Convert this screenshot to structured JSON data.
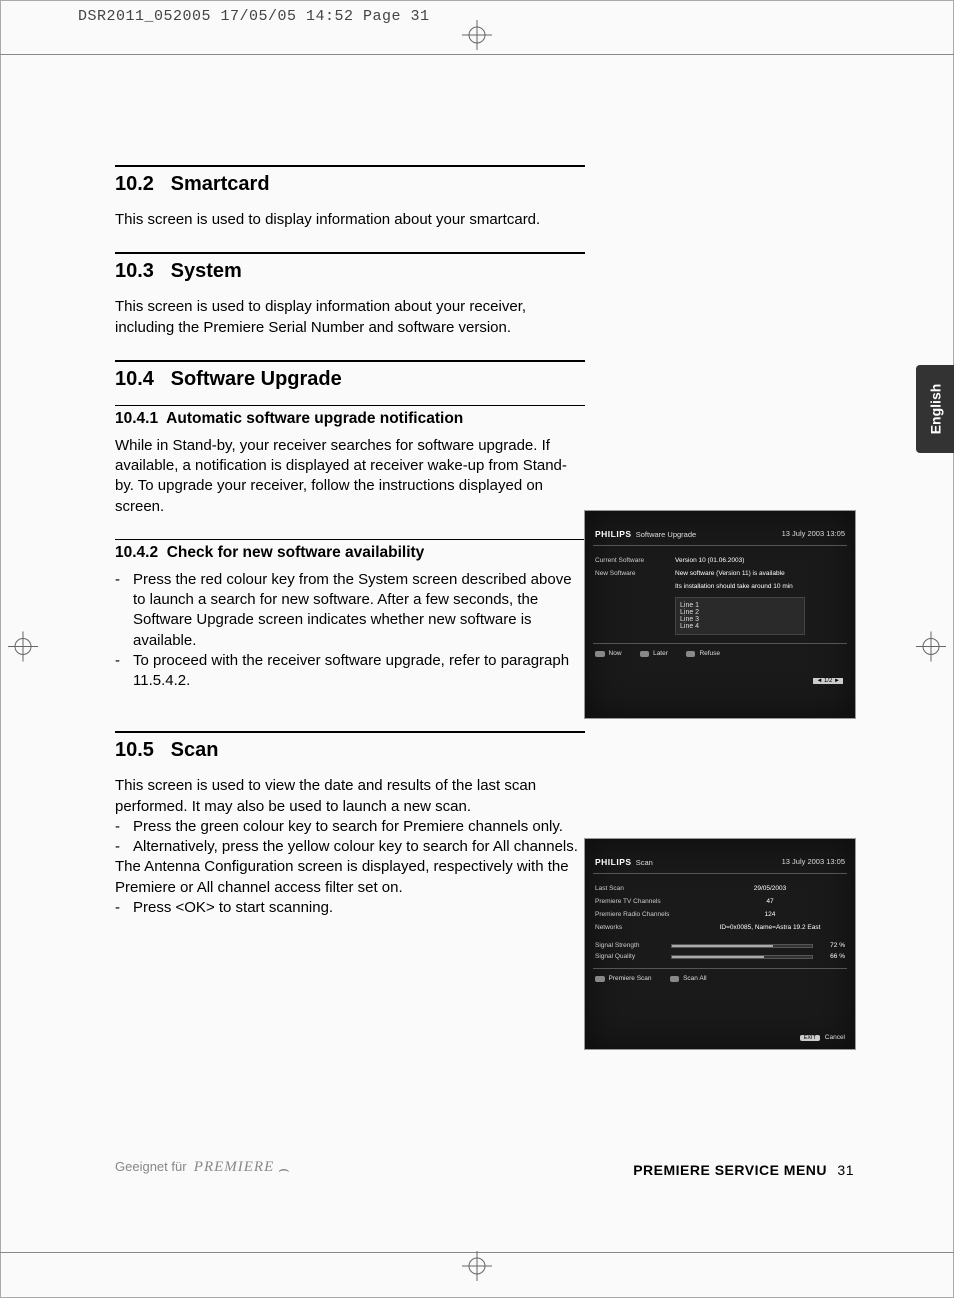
{
  "print_header": "DSR2011_052005  17/05/05  14:52  Page 31",
  "side_tab": "English",
  "sections": {
    "s1": {
      "num": "10.2",
      "title": "Smartcard",
      "body": "This screen is used to display information about your smartcard."
    },
    "s2": {
      "num": "10.3",
      "title": "System",
      "body": "This screen is used to display information about your receiver, including the Premiere Serial Number and software version."
    },
    "s3": {
      "num": "10.4",
      "title": "Software Upgrade",
      "sub1": {
        "num": "10.4.1",
        "title": "Automatic software upgrade notification",
        "body": "While in Stand-by, your receiver searches for software upgrade. If available, a notification is displayed at receiver wake-up from Stand-by. To upgrade your receiver, follow the instructions displayed on screen."
      },
      "sub2": {
        "num": "10.4.2",
        "title": "Check for new software availability",
        "li1": "Press the red colour key from the System screen described above to launch a search for new software. After a few seconds, the Software Upgrade screen indicates whether new software is available.",
        "li2": "To proceed with the receiver software upgrade, refer to paragraph 11.5.4.2."
      }
    },
    "s4": {
      "num": "10.5",
      "title": "Scan",
      "body": "This screen is used to view the date and results of the last scan performed. It may also be used to launch a new scan.",
      "li1": "Press the green colour key to search for Premiere channels only.",
      "li2": "Alternatively, press the yellow colour key to search for All channels.",
      "body2": "The Antenna Configuration screen is displayed, respectively with the Premiere or All channel access filter set on.",
      "li3": "Press <OK> to start scanning."
    }
  },
  "screenshot1": {
    "brand": "PHILIPS",
    "screen_title": "Software Upgrade",
    "datetime": "13 July 2003    13:05",
    "rows": {
      "r1l": "Current Software",
      "r1v": "Version 10 (01.06.2003)",
      "r2l": "New Software",
      "r2v": "New software (Version 11) is available",
      "r3v": "Its installation should take around 10 min"
    },
    "lines": {
      "l1": "Line 1",
      "l2": "Line 2",
      "l3": "Line 3",
      "l4": "Line 4"
    },
    "page_ind": "1/2",
    "footer": {
      "b1": "Now",
      "b2": "Later",
      "b3": "Refuse"
    }
  },
  "screenshot2": {
    "brand": "PHILIPS",
    "screen_title": "Scan",
    "datetime": "13 July 2003    13:05",
    "rows": {
      "r1l": "Last Scan",
      "r1v": "29/05/2003",
      "r2l": "Premiere TV Channels",
      "r2v": "47",
      "r3l": "Premiere Radio Channels",
      "r3v": "124",
      "r4l": "Networks",
      "r4v": "ID=0x0085, Name=Astra 19.2 East"
    },
    "bars": {
      "b1l": "Signal Strength",
      "b1p": 72,
      "b2l": "Signal Quality",
      "b2p": 66
    },
    "footer": {
      "b1": "Premiere Scan",
      "b2": "Scan All"
    },
    "exit": "EXIT",
    "cancel": "Cancel"
  },
  "footer": {
    "left": "Geeignet für",
    "logo": "PREMIERE",
    "right_label": "PREMIERE SERVICE MENU",
    "page": "31"
  },
  "colors": {
    "rule": "#000000",
    "screenshot_bg": "#1a1a1a",
    "bar_fill": "#aaaaaa"
  }
}
